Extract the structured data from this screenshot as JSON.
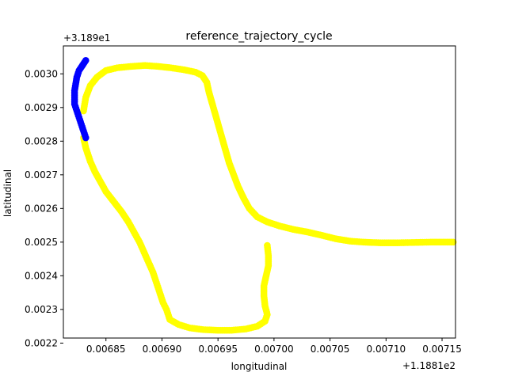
{
  "chart_data": {
    "type": "scatter",
    "title": "reference_trajectory_cycle",
    "xlabel": "longitudinal",
    "ylabel": "latitudinal",
    "x_offset_label": "+1.1881e2",
    "y_offset_label": "+3.189e1",
    "xlim": [
      0.006812,
      0.007162
    ],
    "ylim": [
      0.002215,
      0.003083
    ],
    "x_ticks": [
      0.00685,
      0.0069,
      0.00695,
      0.007,
      0.00705,
      0.0071,
      0.00715
    ],
    "x_tick_labels": [
      "0.00685",
      "0.00690",
      "0.00695",
      "0.00700",
      "0.00705",
      "0.00710",
      "0.00715"
    ],
    "y_ticks": [
      0.0022,
      0.0023,
      0.0024,
      0.0025,
      0.0026,
      0.0027,
      0.0028,
      0.0029,
      0.003
    ],
    "y_tick_labels": [
      "0.0022",
      "0.0023",
      "0.0024",
      "0.0025",
      "0.0026",
      "0.0027",
      "0.0028",
      "0.0029",
      "0.0030"
    ],
    "grid": false,
    "series": [
      {
        "color": "#ffff00",
        "points": [
          [
            0.00683,
            0.00281
          ],
          [
            0.006832,
            0.00278
          ],
          [
            0.006836,
            0.00274
          ],
          [
            0.00684,
            0.00271
          ],
          [
            0.006845,
            0.00268
          ],
          [
            0.00685,
            0.00265
          ],
          [
            0.006857,
            0.00262
          ],
          [
            0.006864,
            0.00259
          ],
          [
            0.00687,
            0.00256
          ],
          [
            0.006875,
            0.00253
          ],
          [
            0.00688,
            0.0025
          ],
          [
            0.006884,
            0.00247
          ],
          [
            0.006888,
            0.00244
          ],
          [
            0.006892,
            0.00241
          ],
          [
            0.006895,
            0.00238
          ],
          [
            0.006898,
            0.00235
          ],
          [
            0.006901,
            0.00232
          ],
          [
            0.006904,
            0.0023
          ],
          [
            0.006907,
            0.00227
          ],
          [
            0.006915,
            0.002255
          ],
          [
            0.006925,
            0.002245
          ],
          [
            0.006937,
            0.00224
          ],
          [
            0.00695,
            0.002238
          ],
          [
            0.006962,
            0.002238
          ],
          [
            0.006975,
            0.002242
          ],
          [
            0.006985,
            0.00225
          ],
          [
            0.006992,
            0.002265
          ],
          [
            0.006994,
            0.002285
          ],
          [
            0.006992,
            0.00231
          ],
          [
            0.006991,
            0.00234
          ],
          [
            0.006991,
            0.00237
          ],
          [
            0.006993,
            0.0024
          ],
          [
            0.006995,
            0.00243
          ],
          [
            0.006995,
            0.00246
          ],
          [
            0.006994,
            0.00249
          ],
          [
            0.00683,
            0.00289
          ],
          [
            0.006832,
            0.00293
          ],
          [
            0.006836,
            0.002965
          ],
          [
            0.006842,
            0.00299
          ],
          [
            0.00685,
            0.00301
          ],
          [
            0.00686,
            0.003018
          ],
          [
            0.006872,
            0.003022
          ],
          [
            0.006885,
            0.003025
          ],
          [
            0.006897,
            0.003022
          ],
          [
            0.006908,
            0.003018
          ],
          [
            0.00692,
            0.003012
          ],
          [
            0.00693,
            0.003005
          ],
          [
            0.006936,
            0.002995
          ],
          [
            0.00694,
            0.002975
          ],
          [
            0.006942,
            0.002945
          ],
          [
            0.006945,
            0.00291
          ],
          [
            0.006948,
            0.002875
          ],
          [
            0.006951,
            0.00284
          ],
          [
            0.006954,
            0.002805
          ],
          [
            0.006957,
            0.00277
          ],
          [
            0.00696,
            0.002735
          ],
          [
            0.006964,
            0.0027
          ],
          [
            0.006968,
            0.002665
          ],
          [
            0.006973,
            0.00263
          ],
          [
            0.006978,
            0.0026
          ],
          [
            0.006985,
            0.002575
          ],
          [
            0.006994,
            0.00256
          ],
          [
            0.007005,
            0.002548
          ],
          [
            0.007017,
            0.002538
          ],
          [
            0.00703,
            0.00253
          ],
          [
            0.007043,
            0.00252
          ],
          [
            0.007055,
            0.00251
          ],
          [
            0.007068,
            0.002503
          ],
          [
            0.00708,
            0.0025
          ],
          [
            0.007095,
            0.002498
          ],
          [
            0.00711,
            0.002498
          ],
          [
            0.007125,
            0.002499
          ],
          [
            0.00714,
            0.0025
          ],
          [
            0.00716,
            0.0025
          ]
        ]
      },
      {
        "color": "#0000ff",
        "points": [
          [
            0.006832,
            0.00281
          ],
          [
            0.00683,
            0.00283
          ],
          [
            0.006828,
            0.00285
          ],
          [
            0.006826,
            0.00287
          ],
          [
            0.006824,
            0.00289
          ],
          [
            0.006822,
            0.00291
          ],
          [
            0.006822,
            0.00293
          ],
          [
            0.006822,
            0.00295
          ],
          [
            0.006823,
            0.00297
          ],
          [
            0.006824,
            0.00299
          ],
          [
            0.006826,
            0.00301
          ],
          [
            0.006829,
            0.003025
          ],
          [
            0.006832,
            0.00304
          ]
        ]
      }
    ]
  }
}
